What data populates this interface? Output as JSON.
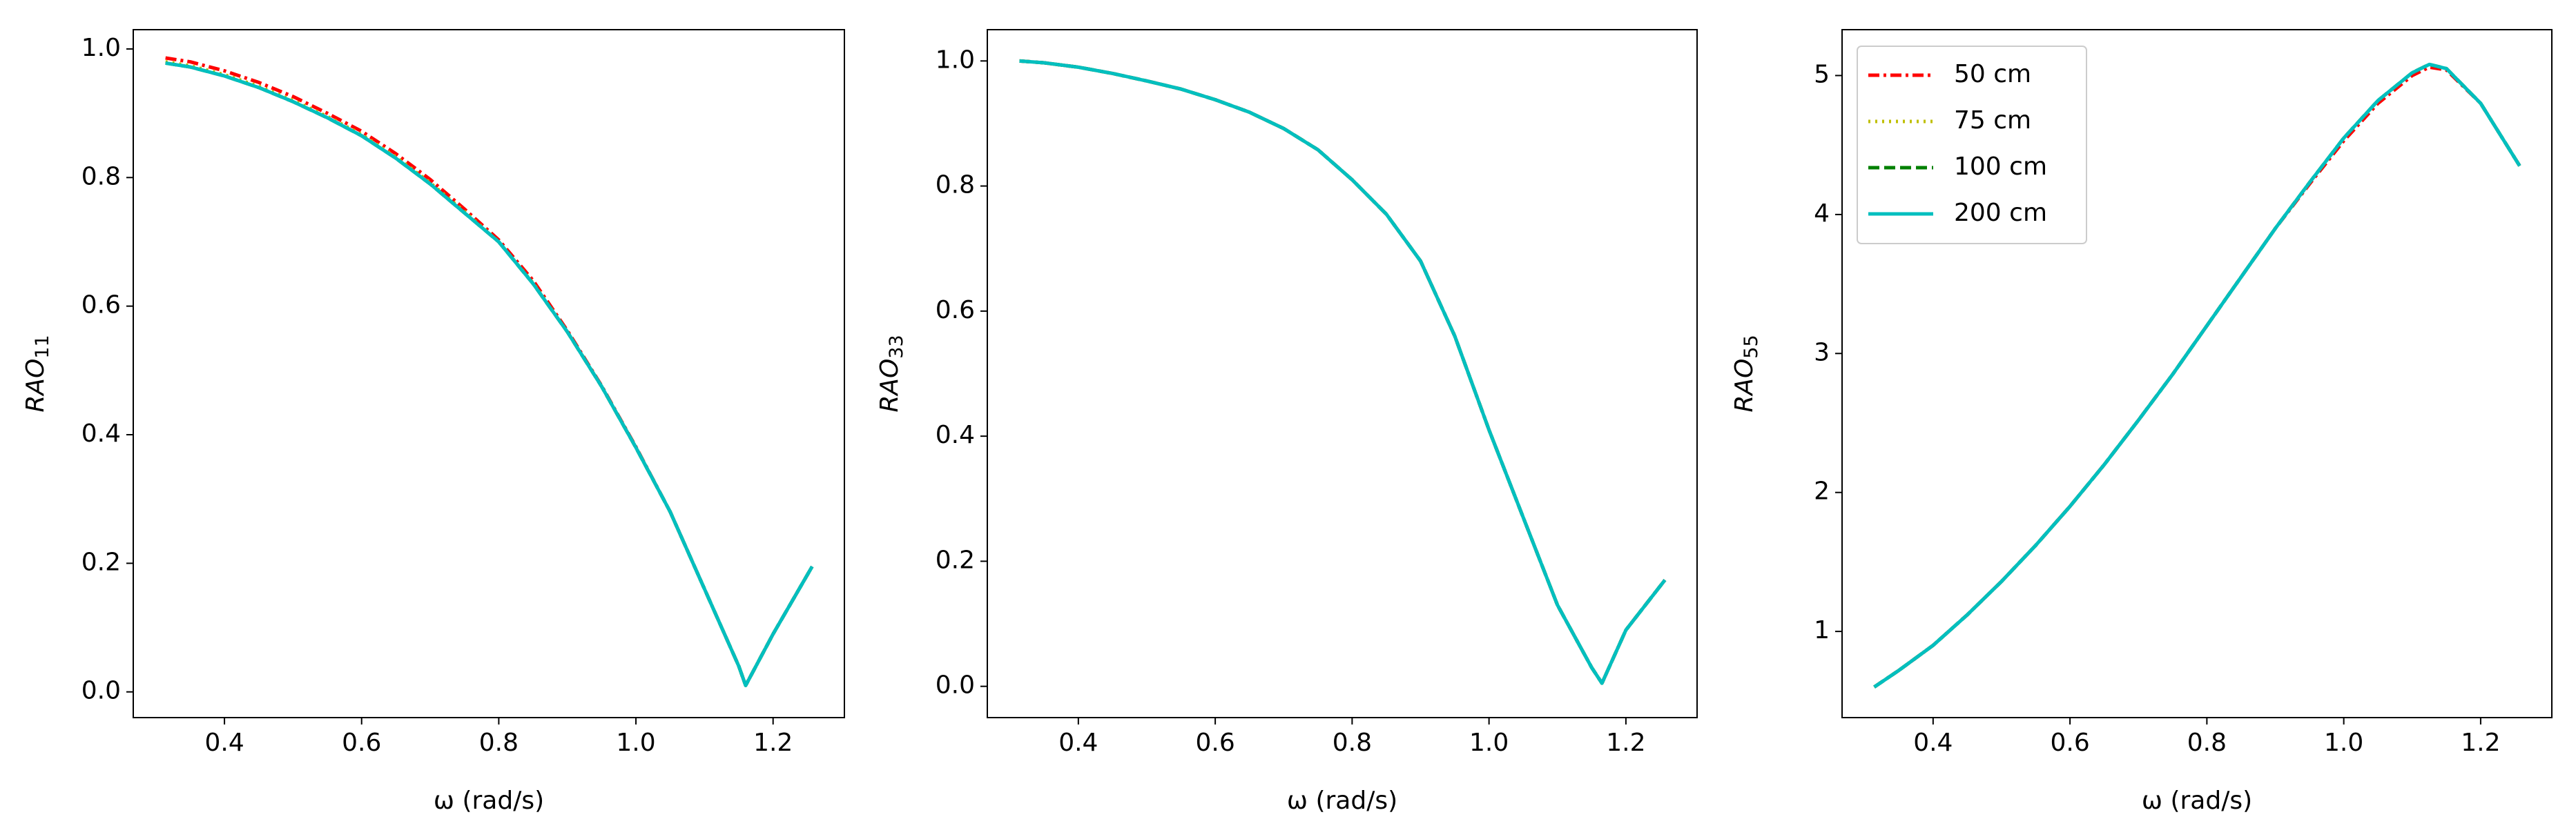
{
  "chart_data": [
    {
      "type": "line",
      "ylabel": "RAO",
      "ylabel_sub": "11",
      "xlabel": "ω (rad/s)",
      "x": [
        0.314,
        0.35,
        0.4,
        0.45,
        0.5,
        0.55,
        0.6,
        0.65,
        0.7,
        0.75,
        0.8,
        0.85,
        0.9,
        0.95,
        1.0,
        1.05,
        1.1,
        1.15,
        1.16,
        1.2,
        1.257
      ],
      "xlim": [
        0.267,
        1.304
      ],
      "xticks": [
        0.4,
        0.6,
        0.8,
        {
          "value": 1,
          "label": "1.0"
        },
        1.2
      ],
      "ylim": [
        -0.04,
        1.03
      ],
      "yticks": [
        {
          "value": 0,
          "label": "0.0"
        },
        0.2,
        0.4,
        0.6,
        0.8,
        {
          "value": 1,
          "label": "1.0"
        }
      ],
      "series": [
        {
          "color": "#ff0000",
          "dash": "dashdot",
          "values": [
            0.986,
            0.98,
            0.966,
            0.948,
            0.926,
            0.9,
            0.872,
            0.837,
            0.797,
            0.751,
            0.703,
            0.64,
            0.562,
            0.476,
            0.381,
            0.28,
            0.16,
            0.04,
            0.01,
            0.09,
            0.195
          ]
        },
        {
          "color": "#bfbf00",
          "dash": "dotted",
          "values": [
            0.98,
            0.974,
            0.96,
            0.942,
            0.92,
            0.895,
            0.867,
            0.832,
            0.792,
            0.747,
            0.7,
            0.636,
            0.56,
            0.475,
            0.38,
            0.28,
            0.16,
            0.04,
            0.01,
            0.09,
            0.195
          ]
        },
        {
          "color": "#008000",
          "dash": "dashed",
          "values": [
            0.978,
            0.972,
            0.958,
            0.94,
            0.918,
            0.893,
            0.865,
            0.83,
            0.79,
            0.745,
            0.7,
            0.635,
            0.56,
            0.475,
            0.38,
            0.28,
            0.16,
            0.04,
            0.01,
            0.09,
            0.195
          ]
        },
        {
          "color": "#00bfbf",
          "dash": "solid",
          "values": [
            0.978,
            0.972,
            0.958,
            0.94,
            0.918,
            0.893,
            0.865,
            0.83,
            0.79,
            0.745,
            0.7,
            0.635,
            0.56,
            0.475,
            0.38,
            0.28,
            0.16,
            0.04,
            0.01,
            0.09,
            0.195
          ]
        }
      ]
    },
    {
      "type": "line",
      "ylabel": "RAO",
      "ylabel_sub": "33",
      "xlabel": "ω (rad/s)",
      "x": [
        0.314,
        0.35,
        0.4,
        0.45,
        0.5,
        0.55,
        0.6,
        0.65,
        0.7,
        0.75,
        0.8,
        0.85,
        0.9,
        0.95,
        1.0,
        1.05,
        1.1,
        1.15,
        1.165,
        1.2,
        1.257
      ],
      "xlim": [
        0.267,
        1.304
      ],
      "xticks": [
        0.4,
        0.6,
        0.8,
        {
          "value": 1,
          "label": "1.0"
        },
        1.2
      ],
      "ylim": [
        -0.05,
        1.05
      ],
      "yticks": [
        {
          "value": 0,
          "label": "0.0"
        },
        0.2,
        0.4,
        0.6,
        0.8,
        {
          "value": 1,
          "label": "1.0"
        }
      ],
      "series": [
        {
          "color": "#ff0000",
          "dash": "dashdot",
          "values": [
            1.0,
            0.997,
            0.99,
            0.98,
            0.968,
            0.955,
            0.938,
            0.918,
            0.892,
            0.858,
            0.81,
            0.755,
            0.68,
            0.56,
            0.41,
            0.27,
            0.13,
            0.03,
            0.005,
            0.09,
            0.17
          ]
        },
        {
          "color": "#bfbf00",
          "dash": "dotted",
          "values": [
            1.0,
            0.997,
            0.99,
            0.98,
            0.968,
            0.955,
            0.938,
            0.918,
            0.892,
            0.858,
            0.81,
            0.755,
            0.68,
            0.56,
            0.41,
            0.27,
            0.13,
            0.03,
            0.005,
            0.09,
            0.17
          ]
        },
        {
          "color": "#008000",
          "dash": "dashed",
          "values": [
            1.0,
            0.997,
            0.99,
            0.98,
            0.968,
            0.955,
            0.938,
            0.918,
            0.892,
            0.858,
            0.81,
            0.755,
            0.68,
            0.56,
            0.41,
            0.27,
            0.13,
            0.03,
            0.005,
            0.09,
            0.17
          ]
        },
        {
          "color": "#00bfbf",
          "dash": "solid",
          "values": [
            1.0,
            0.997,
            0.99,
            0.98,
            0.968,
            0.955,
            0.938,
            0.918,
            0.892,
            0.858,
            0.81,
            0.755,
            0.68,
            0.56,
            0.41,
            0.27,
            0.13,
            0.03,
            0.005,
            0.09,
            0.17
          ]
        }
      ]
    },
    {
      "type": "line",
      "ylabel": "RAO",
      "ylabel_sub": "55",
      "xlabel": "ω (rad/s)",
      "legend": "upper left",
      "x": [
        0.314,
        0.35,
        0.4,
        0.45,
        0.5,
        0.55,
        0.6,
        0.65,
        0.7,
        0.75,
        0.8,
        0.85,
        0.9,
        0.95,
        1.0,
        1.05,
        1.1,
        1.125,
        1.15,
        1.2,
        1.257
      ],
      "xlim": [
        0.267,
        1.304
      ],
      "xticks": [
        0.4,
        0.6,
        0.8,
        {
          "value": 1,
          "label": "1.0"
        },
        1.2
      ],
      "ylim": [
        0.38,
        5.33
      ],
      "yticks": [
        1,
        2,
        3,
        4,
        5
      ],
      "series": [
        {
          "name": "50 cm",
          "color": "#ff0000",
          "dash": "dashdot",
          "values": [
            0.6,
            0.72,
            0.9,
            1.12,
            1.36,
            1.62,
            1.9,
            2.2,
            2.52,
            2.85,
            3.2,
            3.55,
            3.9,
            4.22,
            4.53,
            4.8,
            5.0,
            5.06,
            5.04,
            4.8,
            4.35
          ]
        },
        {
          "name": "75 cm",
          "color": "#bfbf00",
          "dash": "dotted",
          "values": [
            0.6,
            0.72,
            0.9,
            1.12,
            1.36,
            1.62,
            1.9,
            2.2,
            2.52,
            2.85,
            3.2,
            3.55,
            3.9,
            4.23,
            4.55,
            4.82,
            5.02,
            5.08,
            5.05,
            4.8,
            4.35
          ]
        },
        {
          "name": "100 cm",
          "color": "#008000",
          "dash": "dashed",
          "values": [
            0.6,
            0.72,
            0.9,
            1.12,
            1.36,
            1.62,
            1.9,
            2.2,
            2.52,
            2.85,
            3.2,
            3.55,
            3.9,
            4.23,
            4.55,
            4.82,
            5.02,
            5.08,
            5.05,
            4.8,
            4.35
          ]
        },
        {
          "name": "200 cm",
          "color": "#00bfbf",
          "dash": "solid",
          "values": [
            0.6,
            0.72,
            0.9,
            1.12,
            1.36,
            1.62,
            1.9,
            2.2,
            2.52,
            2.85,
            3.2,
            3.55,
            3.9,
            4.23,
            4.55,
            4.82,
            5.02,
            5.08,
            5.05,
            4.8,
            4.35
          ]
        }
      ]
    }
  ]
}
